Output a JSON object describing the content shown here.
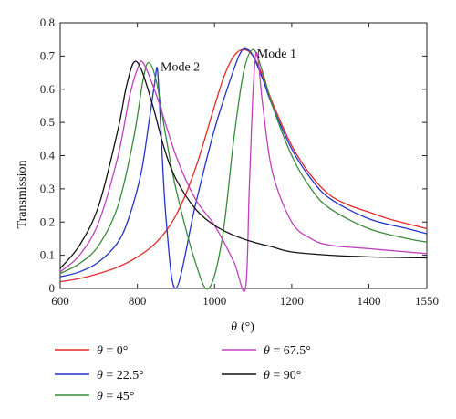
{
  "chart_data": {
    "type": "line",
    "xlabel": "θ (°)",
    "xlabel_symbol": "θ",
    "xlabel_unit": "(°)",
    "ylabel": "Transmission",
    "xlim": [
      600,
      1550
    ],
    "ylim": [
      0,
      0.8
    ],
    "xticks": [
      600,
      800,
      1000,
      1200,
      1400,
      1550
    ],
    "yticks": [
      0,
      0.1,
      0.2,
      0.3,
      0.4,
      0.5,
      0.6,
      0.7,
      0.8
    ],
    "grid": false,
    "legend_placement": "bottom",
    "annotations": [
      {
        "text": "Mode 2",
        "x": 860,
        "y": 0.655
      },
      {
        "text": "Mode 1",
        "x": 1110,
        "y": 0.695
      }
    ],
    "series": [
      {
        "name": "θ = 0°",
        "symbol": "θ",
        "value": " = 0°",
        "color": "#e32b2b",
        "x": [
          600,
          650,
          700,
          750,
          800,
          850,
          900,
          950,
          1000,
          1025,
          1050,
          1075,
          1100,
          1125,
          1150,
          1200,
          1250,
          1300,
          1350,
          1400,
          1450,
          1500,
          1550
        ],
        "y": [
          0.02,
          0.03,
          0.045,
          0.065,
          0.095,
          0.14,
          0.22,
          0.36,
          0.55,
          0.64,
          0.7,
          0.72,
          0.7,
          0.64,
          0.56,
          0.43,
          0.34,
          0.28,
          0.25,
          0.23,
          0.21,
          0.195,
          0.18
        ]
      },
      {
        "name": "θ = 22.5°",
        "symbol": "θ",
        "value": " = 22.5°",
        "color": "#2233cc",
        "x": [
          600,
          650,
          700,
          750,
          780,
          810,
          830,
          845,
          852,
          860,
          875,
          900,
          950,
          1000,
          1050,
          1070,
          1085,
          1100,
          1125,
          1150,
          1200,
          1250,
          1300,
          1400,
          1500,
          1550
        ],
        "y": [
          0.035,
          0.05,
          0.08,
          0.14,
          0.22,
          0.35,
          0.5,
          0.62,
          0.66,
          0.5,
          0.2,
          0.0,
          0.25,
          0.48,
          0.66,
          0.715,
          0.72,
          0.7,
          0.63,
          0.55,
          0.42,
          0.33,
          0.27,
          0.21,
          0.18,
          0.165
        ]
      },
      {
        "name": "θ = 45°",
        "symbol": "θ",
        "value": " = 45°",
        "color": "#3a8a3a",
        "x": [
          600,
          650,
          700,
          750,
          790,
          815,
          830,
          850,
          875,
          900,
          950,
          985,
          1020,
          1050,
          1075,
          1100,
          1125,
          1150,
          1200,
          1250,
          1300,
          1400,
          1500,
          1550
        ],
        "y": [
          0.045,
          0.075,
          0.13,
          0.25,
          0.45,
          0.63,
          0.68,
          0.62,
          0.45,
          0.3,
          0.08,
          0.0,
          0.15,
          0.45,
          0.65,
          0.72,
          0.65,
          0.55,
          0.4,
          0.3,
          0.24,
          0.18,
          0.15,
          0.14
        ]
      },
      {
        "name": "θ = 67.5°",
        "symbol": "θ",
        "value": " = 67.5°",
        "color": "#c040c0",
        "x": [
          600,
          650,
          700,
          750,
          780,
          800,
          815,
          850,
          900,
          950,
          1000,
          1050,
          1080,
          1090,
          1100,
          1110,
          1125,
          1150,
          1200,
          1250,
          1300,
          1400,
          1500,
          1550
        ],
        "y": [
          0.05,
          0.1,
          0.2,
          0.4,
          0.58,
          0.66,
          0.68,
          0.58,
          0.4,
          0.27,
          0.19,
          0.08,
          0.0,
          0.3,
          0.6,
          0.71,
          0.55,
          0.35,
          0.2,
          0.15,
          0.13,
          0.12,
          0.11,
          0.105
        ]
      },
      {
        "name": "θ = 90°",
        "symbol": "θ",
        "value": " = 90°",
        "color": "#111111",
        "x": [
          600,
          650,
          700,
          750,
          770,
          790,
          810,
          840,
          870,
          900,
          950,
          1000,
          1050,
          1100,
          1150,
          1200,
          1300,
          1400,
          1500,
          1550
        ],
        "y": [
          0.06,
          0.13,
          0.25,
          0.48,
          0.6,
          0.68,
          0.66,
          0.55,
          0.42,
          0.33,
          0.24,
          0.19,
          0.16,
          0.14,
          0.125,
          0.11,
          0.1,
          0.095,
          0.093,
          0.092
        ]
      }
    ]
  }
}
